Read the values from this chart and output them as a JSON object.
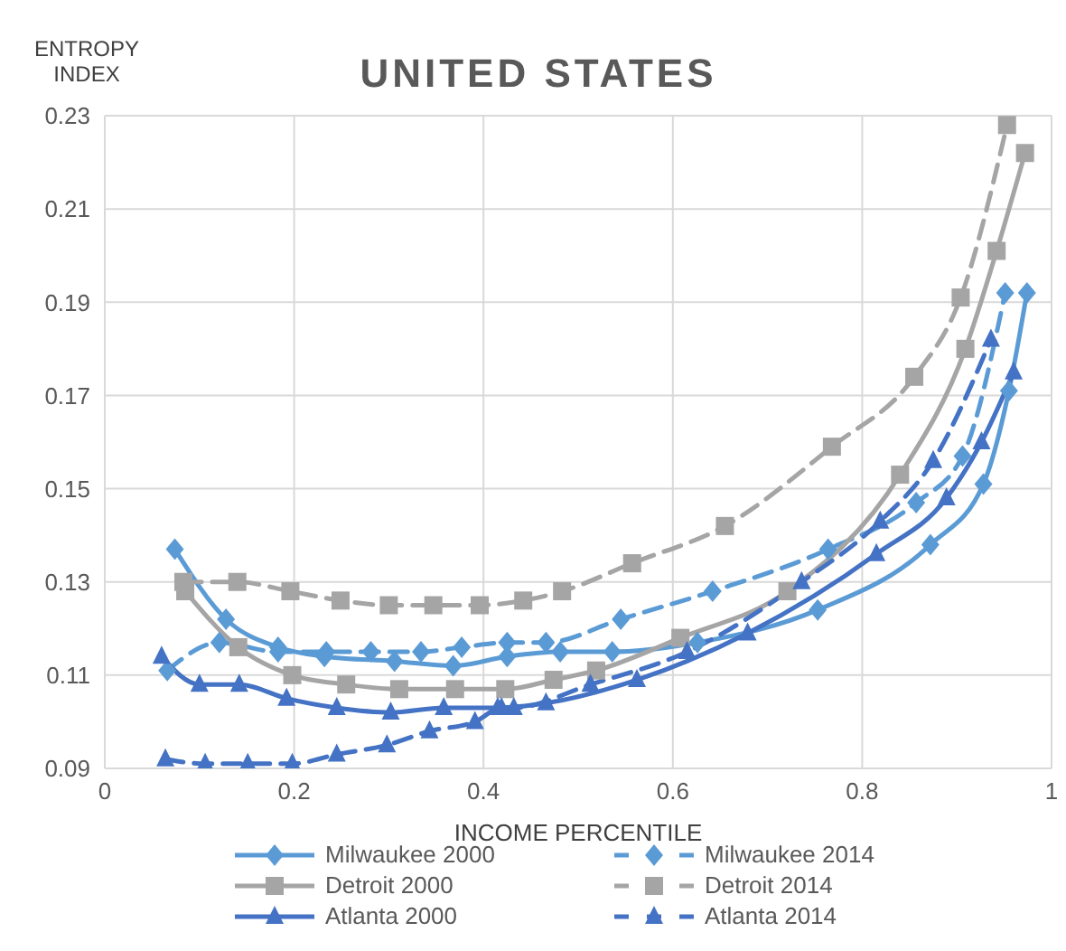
{
  "chart_data": {
    "type": "line",
    "title": "UNITED STATES",
    "xlabel": "INCOME PERCENTILE",
    "ylabel": "ENTROPY INDEX",
    "xlim": [
      0,
      1
    ],
    "xticks": [
      0,
      0.2,
      0.4,
      0.6,
      0.8,
      1
    ],
    "ylim": [
      0.09,
      0.23
    ],
    "yticks": [
      0.09,
      0.11,
      0.13,
      0.15,
      0.17,
      0.19,
      0.21,
      0.23
    ],
    "grid": true,
    "legend": "bottom",
    "series": [
      {
        "name": "Milwaukee 2000",
        "color": "#5b9bd5",
        "marker": "diamond",
        "line_style": "solid",
        "x": [
          0.074,
          0.128,
          0.183,
          0.232,
          0.306,
          0.368,
          0.425,
          0.481,
          0.536,
          0.626,
          0.753,
          0.872,
          0.928,
          0.955,
          0.974
        ],
        "values": [
          0.137,
          0.122,
          0.116,
          0.114,
          0.113,
          0.112,
          0.114,
          0.115,
          0.115,
          0.117,
          0.124,
          0.138,
          0.151,
          0.171,
          0.192
        ]
      },
      {
        "name": "Milwaukee 2014",
        "color": "#5b9bd5",
        "marker": "diamond",
        "line_style": "dashed",
        "x": [
          0.066,
          0.121,
          0.183,
          0.234,
          0.281,
          0.334,
          0.377,
          0.425,
          0.466,
          0.545,
          0.642,
          0.764,
          0.857,
          0.906,
          0.951
        ],
        "values": [
          0.111,
          0.117,
          0.115,
          0.115,
          0.115,
          0.115,
          0.116,
          0.117,
          0.117,
          0.122,
          0.128,
          0.137,
          0.147,
          0.157,
          0.192
        ]
      },
      {
        "name": "Detroit 2000",
        "color": "#a5a5a5",
        "marker": "square",
        "line_style": "solid",
        "x": [
          0.085,
          0.141,
          0.198,
          0.255,
          0.311,
          0.37,
          0.423,
          0.474,
          0.519,
          0.608,
          0.721,
          0.84,
          0.909,
          0.942,
          0.972
        ],
        "values": [
          0.128,
          0.116,
          0.11,
          0.108,
          0.107,
          0.107,
          0.107,
          0.109,
          0.111,
          0.118,
          0.128,
          0.153,
          0.18,
          0.201,
          0.222
        ]
      },
      {
        "name": "Detroit 2014",
        "color": "#a5a5a5",
        "marker": "square",
        "line_style": "dashed",
        "x": [
          0.083,
          0.14,
          0.196,
          0.249,
          0.3,
          0.347,
          0.396,
          0.442,
          0.483,
          0.557,
          0.655,
          0.768,
          0.855,
          0.904,
          0.953
        ],
        "values": [
          0.13,
          0.13,
          0.128,
          0.126,
          0.125,
          0.125,
          0.125,
          0.126,
          0.128,
          0.134,
          0.142,
          0.159,
          0.174,
          0.191,
          0.228
        ]
      },
      {
        "name": "Atlanta 2000",
        "color": "#4472c4",
        "marker": "triangle",
        "line_style": "solid",
        "x": [
          0.06,
          0.1,
          0.142,
          0.192,
          0.245,
          0.302,
          0.358,
          0.415,
          0.466,
          0.562,
          0.679,
          0.815,
          0.889,
          0.926,
          0.96
        ],
        "values": [
          0.114,
          0.108,
          0.108,
          0.105,
          0.103,
          0.102,
          0.103,
          0.103,
          0.104,
          0.109,
          0.119,
          0.136,
          0.148,
          0.16,
          0.175
        ]
      },
      {
        "name": "Atlanta 2014",
        "color": "#4472c4",
        "marker": "triangle",
        "line_style": "dashed",
        "x": [
          0.064,
          0.106,
          0.151,
          0.198,
          0.245,
          0.298,
          0.343,
          0.391,
          0.419,
          0.432,
          0.513,
          0.615,
          0.736,
          0.819,
          0.875,
          0.936
        ],
        "values": [
          0.092,
          0.091,
          0.091,
          0.091,
          0.093,
          0.095,
          0.098,
          0.1,
          0.103,
          0.103,
          0.108,
          0.115,
          0.13,
          0.143,
          0.156,
          0.182
        ]
      }
    ]
  }
}
